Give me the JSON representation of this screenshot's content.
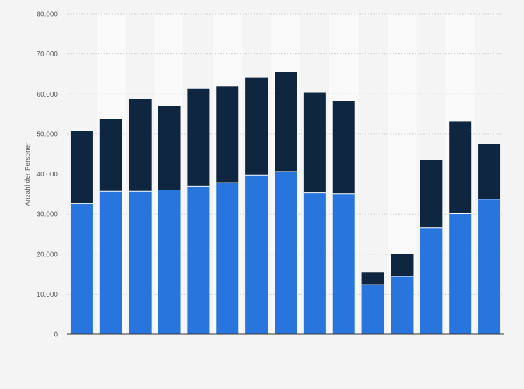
{
  "chart_data": {
    "type": "bar",
    "stacked": true,
    "title": "",
    "xlabel": "",
    "ylabel": "Anzahl der Personen",
    "ylim": [
      0,
      80000
    ],
    "yticks": [
      0,
      10000,
      20000,
      30000,
      40000,
      50000,
      60000,
      70000,
      80000
    ],
    "ytick_labels": [
      "0",
      "10.000",
      "20.000",
      "30.000",
      "40.000",
      "50.000",
      "60.000",
      "70.000",
      "80.000"
    ],
    "grid": true,
    "legend": "none",
    "categories": [
      "",
      "",
      "",
      "",
      "",
      "",
      "",
      "",
      "",
      "",
      "",
      "",
      "",
      "",
      ""
    ],
    "series": [
      {
        "color": "#2876dd",
        "values": [
          32700,
          35700,
          35700,
          36000,
          36900,
          37800,
          39700,
          40600,
          35300,
          35100,
          12300,
          14400,
          26600,
          30100,
          33700
        ]
      },
      {
        "color": "#0f2640",
        "values": [
          18000,
          18000,
          23000,
          21000,
          24400,
          24100,
          24400,
          24900,
          25000,
          23100,
          3100,
          5600,
          16800,
          23100,
          13700
        ]
      }
    ]
  }
}
